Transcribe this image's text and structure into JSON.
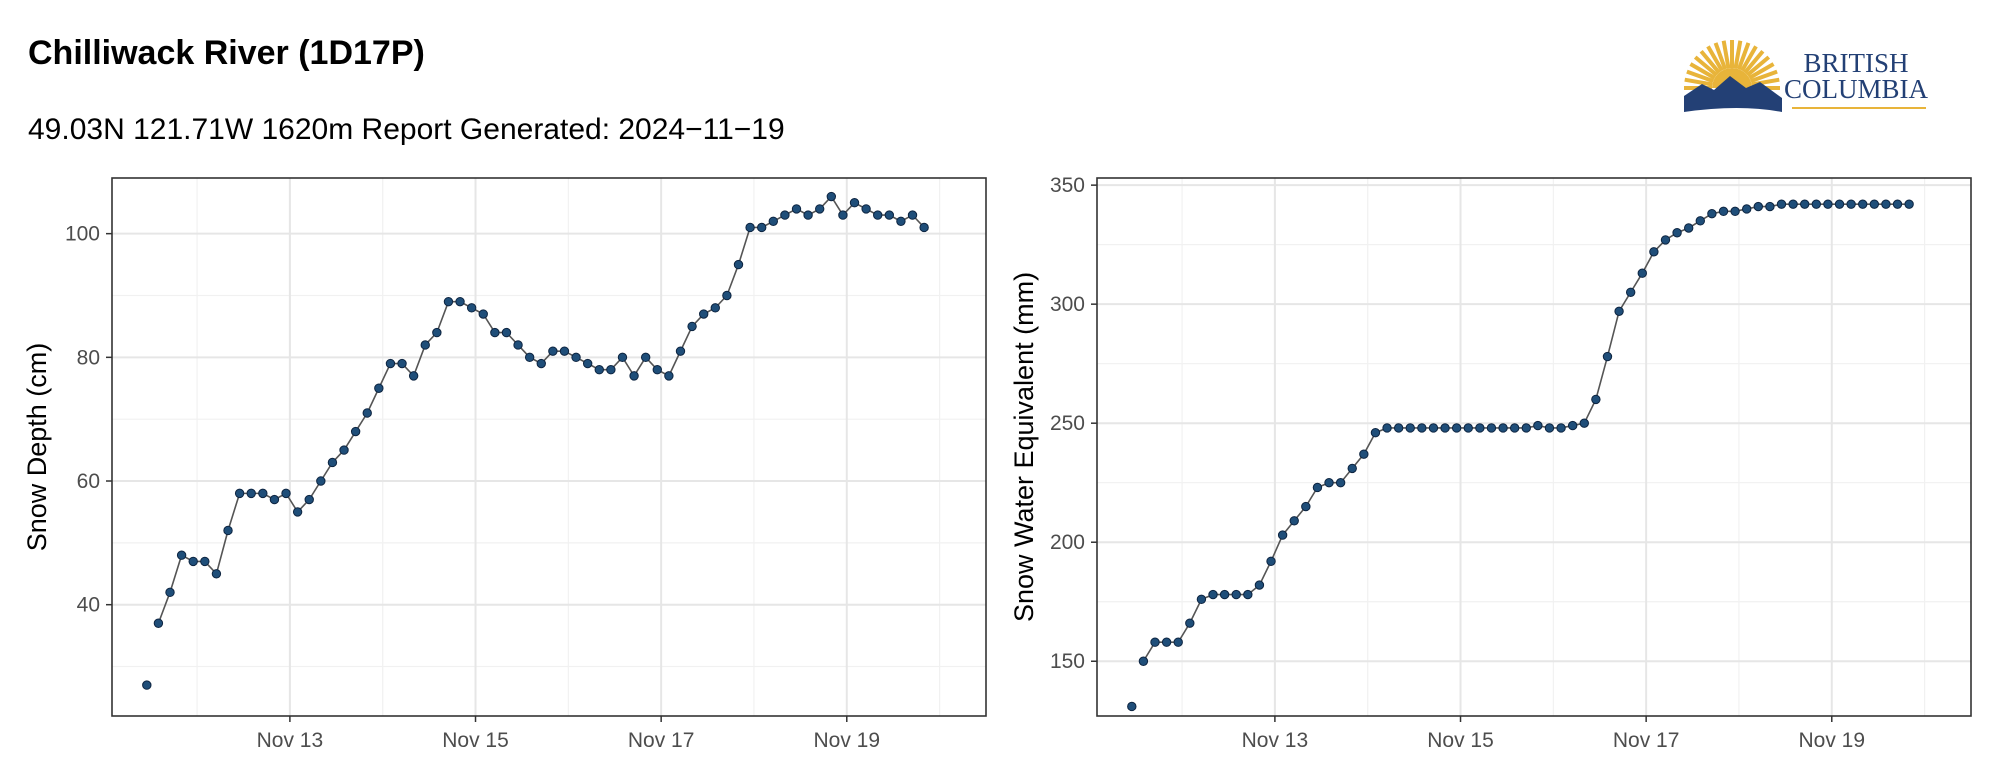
{
  "header": {
    "title": "Chilliwack River (1D17P)",
    "subtitle": "49.03N 121.71W 1620m Report Generated: 2024−11−19"
  },
  "logo": {
    "text_line1": "BRITISH",
    "text_line2": "COLUMBIA",
    "colors": {
      "sun": "#e8b43a",
      "mountain": "#234075",
      "rule": "#e8b43a"
    }
  },
  "colors": {
    "marker": "#1f4e79",
    "line": "#555555",
    "grid": "#e6e6e6"
  },
  "chart_data": [
    {
      "type": "scatter",
      "ylabel": "Snow Depth (cm)",
      "xlabel": "",
      "x_ticks": [
        "Nov 13",
        "Nov 15",
        "Nov 17",
        "Nov 19"
      ],
      "y_ticks": [
        40,
        60,
        80,
        100
      ],
      "xlim": [
        "2024-11-11 02:00",
        "2024-11-20 12:00"
      ],
      "ylim": [
        22,
        109
      ],
      "grid": true,
      "series": [
        {
          "x": [
            "2024-11-11 11:00",
            "2024-11-11 14:00",
            "2024-11-11 17:00",
            "2024-11-11 20:00",
            "2024-11-11 23:00",
            "2024-11-12 02:00",
            "2024-11-12 05:00",
            "2024-11-12 08:00",
            "2024-11-12 11:00",
            "2024-11-12 14:00",
            "2024-11-12 17:00",
            "2024-11-12 20:00",
            "2024-11-12 23:00",
            "2024-11-13 02:00",
            "2024-11-13 05:00",
            "2024-11-13 08:00",
            "2024-11-13 11:00",
            "2024-11-13 14:00",
            "2024-11-13 17:00",
            "2024-11-13 20:00",
            "2024-11-13 23:00",
            "2024-11-14 02:00",
            "2024-11-14 05:00",
            "2024-11-14 08:00",
            "2024-11-14 11:00",
            "2024-11-14 14:00",
            "2024-11-14 17:00",
            "2024-11-14 20:00",
            "2024-11-14 23:00",
            "2024-11-15 02:00",
            "2024-11-15 05:00",
            "2024-11-15 08:00",
            "2024-11-15 11:00",
            "2024-11-15 14:00",
            "2024-11-15 17:00",
            "2024-11-15 20:00",
            "2024-11-15 23:00",
            "2024-11-16 02:00",
            "2024-11-16 05:00",
            "2024-11-16 08:00",
            "2024-11-16 11:00",
            "2024-11-16 14:00",
            "2024-11-16 17:00",
            "2024-11-16 20:00",
            "2024-11-16 23:00",
            "2024-11-17 02:00",
            "2024-11-17 05:00",
            "2024-11-17 08:00",
            "2024-11-17 11:00",
            "2024-11-17 14:00",
            "2024-11-17 17:00",
            "2024-11-17 20:00",
            "2024-11-17 23:00",
            "2024-11-18 02:00",
            "2024-11-18 05:00",
            "2024-11-18 08:00",
            "2024-11-18 11:00",
            "2024-11-18 14:00",
            "2024-11-18 17:00",
            "2024-11-18 20:00",
            "2024-11-18 23:00",
            "2024-11-19 02:00",
            "2024-11-19 05:00",
            "2024-11-19 08:00",
            "2024-11-19 11:00",
            "2024-11-19 14:00",
            "2024-11-19 17:00",
            "2024-11-19 20:00"
          ],
          "values": [
            27,
            37,
            42,
            48,
            47,
            47,
            45,
            52,
            58,
            58,
            58,
            57,
            58,
            55,
            57,
            60,
            63,
            65,
            68,
            71,
            75,
            79,
            79,
            77,
            82,
            84,
            89,
            89,
            88,
            87,
            84,
            84,
            82,
            80,
            79,
            81,
            81,
            80,
            79,
            78,
            78,
            80,
            77,
            80,
            78,
            77,
            81,
            85,
            87,
            88,
            90,
            95,
            101,
            101,
            102,
            103,
            104,
            103,
            104,
            106,
            103,
            105,
            104,
            103,
            103,
            102,
            103,
            101
          ]
        }
      ]
    },
    {
      "type": "scatter",
      "ylabel": "Snow Water Equivalent (mm)",
      "xlabel": "",
      "x_ticks": [
        "Nov 13",
        "Nov 15",
        "Nov 17",
        "Nov 19"
      ],
      "y_ticks": [
        150,
        200,
        250,
        300,
        350
      ],
      "xlim": [
        "2024-11-11 02:00",
        "2024-11-20 12:00"
      ],
      "ylim": [
        127,
        353
      ],
      "grid": true,
      "series": [
        {
          "x": [
            "2024-11-11 11:00",
            "2024-11-11 14:00",
            "2024-11-11 17:00",
            "2024-11-11 20:00",
            "2024-11-11 23:00",
            "2024-11-12 02:00",
            "2024-11-12 05:00",
            "2024-11-12 08:00",
            "2024-11-12 11:00",
            "2024-11-12 14:00",
            "2024-11-12 17:00",
            "2024-11-12 20:00",
            "2024-11-12 23:00",
            "2024-11-13 02:00",
            "2024-11-13 05:00",
            "2024-11-13 08:00",
            "2024-11-13 11:00",
            "2024-11-13 14:00",
            "2024-11-13 17:00",
            "2024-11-13 20:00",
            "2024-11-13 23:00",
            "2024-11-14 02:00",
            "2024-11-14 05:00",
            "2024-11-14 08:00",
            "2024-11-14 11:00",
            "2024-11-14 14:00",
            "2024-11-14 17:00",
            "2024-11-14 20:00",
            "2024-11-14 23:00",
            "2024-11-15 02:00",
            "2024-11-15 05:00",
            "2024-11-15 08:00",
            "2024-11-15 11:00",
            "2024-11-15 14:00",
            "2024-11-15 17:00",
            "2024-11-15 20:00",
            "2024-11-15 23:00",
            "2024-11-16 02:00",
            "2024-11-16 05:00",
            "2024-11-16 08:00",
            "2024-11-16 11:00",
            "2024-11-16 14:00",
            "2024-11-16 17:00",
            "2024-11-16 20:00",
            "2024-11-16 23:00",
            "2024-11-17 02:00",
            "2024-11-17 05:00",
            "2024-11-17 08:00",
            "2024-11-17 11:00",
            "2024-11-17 14:00",
            "2024-11-17 17:00",
            "2024-11-17 20:00",
            "2024-11-17 23:00",
            "2024-11-18 02:00",
            "2024-11-18 05:00",
            "2024-11-18 08:00",
            "2024-11-18 11:00",
            "2024-11-18 14:00",
            "2024-11-18 17:00",
            "2024-11-18 20:00",
            "2024-11-18 23:00",
            "2024-11-19 02:00",
            "2024-11-19 05:00",
            "2024-11-19 08:00",
            "2024-11-19 11:00",
            "2024-11-19 14:00",
            "2024-11-19 17:00",
            "2024-11-19 20:00"
          ],
          "values": [
            131,
            150,
            158,
            158,
            158,
            166,
            176,
            178,
            178,
            178,
            178,
            182,
            192,
            203,
            209,
            215,
            223,
            225,
            225,
            231,
            237,
            246,
            248,
            248,
            248,
            248,
            248,
            248,
            248,
            248,
            248,
            248,
            248,
            248,
            248,
            249,
            248,
            248,
            249,
            250,
            260,
            278,
            297,
            305,
            313,
            322,
            327,
            330,
            332,
            335,
            338,
            339,
            339,
            340,
            341,
            341,
            342,
            342,
            342,
            342,
            342,
            342,
            342,
            342,
            342,
            342,
            342,
            342
          ]
        }
      ]
    }
  ]
}
